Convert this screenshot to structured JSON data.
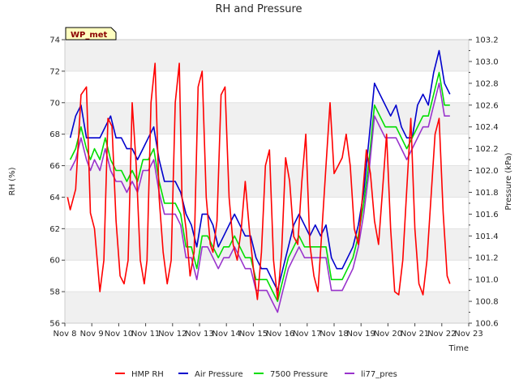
{
  "chart_data": {
    "type": "line",
    "title": "RH and Pressure",
    "station_label": "WP_met",
    "xlabel": "Time",
    "ylabel_left": "RH (%)",
    "ylabel_right": "Pressure (kPa)",
    "x_ticks": [
      "Nov 8",
      "Nov 9",
      "Nov 10",
      "Nov 11",
      "Nov 12",
      "Nov 13",
      "Nov 14",
      "Nov 15",
      "Nov 16",
      "Nov 17",
      "Nov 18",
      "Nov 19",
      "Nov 20",
      "Nov 21",
      "Nov 22",
      "Nov 23"
    ],
    "xlim": [
      8,
      23
    ],
    "ylim_left": [
      56,
      74
    ],
    "yticks_left": [
      56,
      58,
      60,
      62,
      64,
      66,
      68,
      70,
      72,
      74
    ],
    "ylim_right": [
      100.6,
      103.2
    ],
    "yticks_right": [
      "100.6",
      "100.8",
      "101.0",
      "101.2",
      "101.4",
      "101.6",
      "101.8",
      "102.0",
      "102.2",
      "102.4",
      "102.6",
      "102.8",
      "103.0",
      "103.2"
    ],
    "grid": "horizontal bands",
    "legend_position": "bottom-center",
    "series": [
      {
        "name": "HMP RH",
        "axis": "left",
        "color": "#ff0000",
        "x": [
          8.1,
          8.2,
          8.4,
          8.6,
          8.8,
          8.95,
          9.1,
          9.3,
          9.45,
          9.6,
          9.75,
          9.9,
          10.05,
          10.2,
          10.35,
          10.5,
          10.65,
          10.8,
          10.95,
          11.05,
          11.2,
          11.35,
          11.5,
          11.65,
          11.8,
          11.95,
          12.1,
          12.25,
          12.35,
          12.5,
          12.65,
          12.8,
          12.95,
          13.1,
          13.25,
          13.4,
          13.5,
          13.65,
          13.8,
          13.95,
          14.1,
          14.25,
          14.4,
          14.55,
          14.7,
          14.85,
          15.0,
          15.15,
          15.3,
          15.45,
          15.6,
          15.75,
          15.9,
          16.05,
          16.2,
          16.35,
          16.5,
          16.65,
          16.8,
          16.95,
          17.1,
          17.25,
          17.4,
          17.55,
          17.7,
          17.85,
          18.0,
          18.15,
          18.3,
          18.45,
          18.6,
          18.75,
          18.9,
          19.05,
          19.2,
          19.35,
          19.5,
          19.65,
          19.8,
          19.95,
          20.1,
          20.25,
          20.4,
          20.55,
          20.7,
          20.85,
          21.0,
          21.15,
          21.3,
          21.45,
          21.6,
          21.75,
          21.9,
          22.05,
          22.2,
          22.3
        ],
        "y": [
          64.0,
          63.2,
          64.5,
          70.5,
          71.0,
          63.0,
          62.0,
          58.0,
          60.0,
          69.0,
          68.5,
          62.5,
          59.0,
          58.5,
          60.0,
          70.0,
          66.0,
          60.0,
          58.5,
          60.0,
          70.0,
          72.5,
          64.0,
          60.5,
          58.5,
          60.0,
          70.0,
          72.5,
          64.0,
          62.0,
          59.0,
          60.5,
          71.0,
          72.0,
          64.0,
          61.0,
          60.5,
          62.5,
          70.5,
          71.0,
          64.0,
          61.0,
          60.0,
          62.0,
          65.0,
          62.0,
          59.5,
          57.5,
          60.5,
          66.0,
          67.0,
          60.0,
          57.5,
          60.5,
          66.5,
          65.0,
          61.5,
          61.0,
          65.0,
          68.0,
          61.0,
          59.0,
          58.0,
          62.0,
          66.0,
          70.0,
          65.5,
          66.0,
          66.5,
          68.0,
          66.0,
          62.0,
          61.0,
          64.0,
          67.0,
          65.5,
          62.5,
          61.0,
          64.5,
          68.0,
          62.0,
          58.0,
          57.8,
          60.0,
          64.5,
          69.0,
          62.0,
          58.5,
          57.8,
          60.0,
          64.0,
          68.0,
          69.0,
          63.0,
          59.0,
          58.5
        ]
      },
      {
        "name": "Air Pressure",
        "axis": "right",
        "color": "#0000cc",
        "x": [
          8.2,
          8.4,
          8.6,
          8.8,
          8.95,
          9.1,
          9.3,
          9.5,
          9.7,
          9.9,
          10.1,
          10.3,
          10.5,
          10.7,
          10.9,
          11.1,
          11.3,
          11.5,
          11.7,
          11.9,
          12.1,
          12.3,
          12.5,
          12.7,
          12.9,
          13.1,
          13.3,
          13.5,
          13.7,
          13.9,
          14.1,
          14.3,
          14.5,
          14.7,
          14.9,
          15.1,
          15.3,
          15.5,
          15.7,
          15.9,
          16.1,
          16.3,
          16.5,
          16.7,
          16.9,
          17.1,
          17.3,
          17.5,
          17.7,
          17.9,
          18.1,
          18.3,
          18.5,
          18.7,
          18.9,
          19.1,
          19.3,
          19.5,
          19.7,
          19.9,
          20.1,
          20.3,
          20.5,
          20.7,
          20.9,
          21.1,
          21.3,
          21.5,
          21.7,
          21.9,
          22.1,
          22.3
        ],
        "y": [
          102.3,
          102.5,
          102.6,
          102.3,
          102.3,
          102.3,
          102.3,
          102.4,
          102.5,
          102.3,
          102.3,
          102.2,
          102.2,
          102.1,
          102.2,
          102.3,
          102.4,
          102.1,
          101.9,
          101.9,
          101.9,
          101.8,
          101.6,
          101.5,
          101.3,
          101.6,
          101.6,
          101.5,
          101.3,
          101.4,
          101.5,
          101.6,
          101.5,
          101.4,
          101.4,
          101.2,
          101.1,
          101.1,
          101.0,
          100.9,
          101.1,
          101.3,
          101.5,
          101.6,
          101.5,
          101.4,
          101.5,
          101.4,
          101.5,
          101.2,
          101.1,
          101.1,
          101.2,
          101.3,
          101.5,
          101.8,
          102.3,
          102.8,
          102.7,
          102.6,
          102.5,
          102.6,
          102.4,
          102.3,
          102.3,
          102.6,
          102.7,
          102.6,
          102.9,
          103.1,
          102.8,
          102.7
        ]
      },
      {
        "name": "7500 Pressure",
        "axis": "right",
        "color": "#00dd00",
        "x": [
          8.2,
          8.4,
          8.6,
          8.8,
          8.95,
          9.1,
          9.3,
          9.5,
          9.7,
          9.9,
          10.1,
          10.3,
          10.5,
          10.7,
          10.9,
          11.1,
          11.3,
          11.5,
          11.7,
          11.9,
          12.1,
          12.3,
          12.5,
          12.7,
          12.9,
          13.1,
          13.3,
          13.5,
          13.7,
          13.9,
          14.1,
          14.3,
          14.5,
          14.7,
          14.9,
          15.1,
          15.3,
          15.5,
          15.7,
          15.9,
          16.1,
          16.3,
          16.5,
          16.7,
          16.9,
          17.1,
          17.3,
          17.5,
          17.7,
          17.9,
          18.1,
          18.3,
          18.5,
          18.7,
          18.9,
          19.1,
          19.3,
          19.5,
          19.7,
          19.9,
          20.1,
          20.3,
          20.5,
          20.7,
          20.9,
          21.1,
          21.3,
          21.5,
          21.7,
          21.9,
          22.1,
          22.3
        ],
        "y": [
          102.1,
          102.2,
          102.4,
          102.2,
          102.1,
          102.2,
          102.1,
          102.3,
          102.1,
          102.0,
          102.0,
          101.9,
          102.0,
          101.9,
          102.1,
          102.1,
          102.2,
          101.9,
          101.7,
          101.7,
          101.7,
          101.6,
          101.3,
          101.3,
          101.1,
          101.4,
          101.4,
          101.3,
          101.2,
          101.3,
          101.3,
          101.4,
          101.3,
          101.2,
          101.2,
          101.0,
          101.0,
          101.0,
          100.9,
          100.8,
          101.0,
          101.2,
          101.3,
          101.4,
          101.3,
          101.3,
          101.3,
          101.3,
          101.3,
          101.0,
          101.0,
          101.0,
          101.1,
          101.2,
          101.4,
          101.7,
          102.1,
          102.6,
          102.5,
          102.4,
          102.4,
          102.4,
          102.3,
          102.2,
          102.3,
          102.4,
          102.5,
          102.5,
          102.7,
          102.9,
          102.6,
          102.6
        ]
      },
      {
        "name": "li77_pres",
        "axis": "right",
        "color": "#9933cc",
        "x": [
          8.2,
          8.4,
          8.6,
          8.8,
          8.95,
          9.1,
          9.3,
          9.5,
          9.7,
          9.9,
          10.1,
          10.3,
          10.5,
          10.7,
          10.9,
          11.1,
          11.3,
          11.5,
          11.7,
          11.9,
          12.1,
          12.3,
          12.5,
          12.7,
          12.9,
          13.1,
          13.3,
          13.5,
          13.7,
          13.9,
          14.1,
          14.3,
          14.5,
          14.7,
          14.9,
          15.1,
          15.3,
          15.5,
          15.7,
          15.9,
          16.1,
          16.3,
          16.5,
          16.7,
          16.9,
          17.1,
          17.3,
          17.5,
          17.7,
          17.9,
          18.1,
          18.3,
          18.5,
          18.7,
          18.9,
          19.1,
          19.3,
          19.5,
          19.7,
          19.9,
          20.1,
          20.3,
          20.5,
          20.7,
          20.9,
          21.1,
          21.3,
          21.5,
          21.7,
          21.9,
          22.1,
          22.3
        ],
        "y": [
          102.0,
          102.1,
          102.3,
          102.1,
          102.0,
          102.1,
          102.0,
          102.2,
          102.0,
          101.9,
          101.9,
          101.8,
          101.9,
          101.8,
          102.0,
          102.0,
          102.1,
          101.8,
          101.6,
          101.6,
          101.6,
          101.5,
          101.2,
          101.2,
          101.0,
          101.3,
          101.3,
          101.2,
          101.1,
          101.2,
          101.2,
          101.3,
          101.2,
          101.1,
          101.1,
          100.9,
          100.9,
          100.9,
          100.8,
          100.7,
          100.9,
          101.1,
          101.2,
          101.3,
          101.2,
          101.2,
          101.2,
          101.2,
          101.2,
          100.9,
          100.9,
          100.9,
          101.0,
          101.1,
          101.3,
          101.6,
          102.0,
          102.5,
          102.4,
          102.3,
          102.3,
          102.3,
          102.2,
          102.1,
          102.2,
          102.3,
          102.4,
          102.4,
          102.6,
          102.8,
          102.5,
          102.5
        ]
      }
    ]
  }
}
